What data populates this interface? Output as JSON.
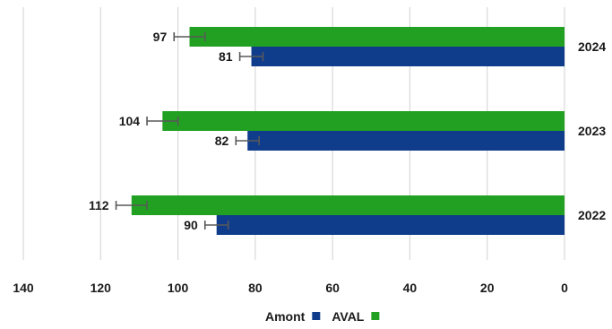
{
  "chart_data": {
    "type": "bar",
    "orientation": "horizontal",
    "x_axis_reversed": true,
    "categories": [
      "2024",
      "2023",
      "2022"
    ],
    "series": [
      {
        "name": "AVAL",
        "color": "#22a022",
        "values": [
          97,
          104,
          112
        ],
        "error": [
          4,
          4,
          4
        ]
      },
      {
        "name": "Amont",
        "color": "#0f3d8c",
        "values": [
          81,
          82,
          90
        ],
        "error": [
          3,
          3,
          3
        ]
      }
    ],
    "xlim": [
      0,
      140
    ],
    "x_ticks": [
      "140",
      "120",
      "100",
      "80",
      "60",
      "40",
      "20",
      "0"
    ],
    "grid": "vertical",
    "legend_position": "bottom",
    "legend": [
      "Amont",
      "AVAL"
    ],
    "title": "",
    "xlabel": "",
    "ylabel": ""
  }
}
